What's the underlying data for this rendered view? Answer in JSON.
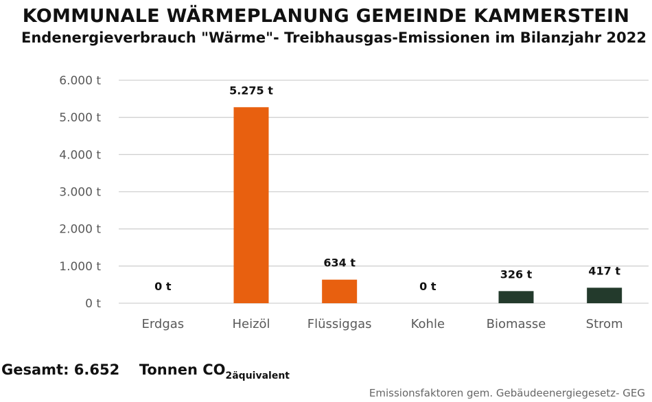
{
  "header": {
    "title": "KOMMUNALE WÄRMEPLANUNG GEMEINDE KAMMERSTEIN",
    "subtitle": "Endenergieverbrauch \"Wärme\"- Treibhausgas-Emissionen im Bilanzjahr 2022"
  },
  "chart_data": {
    "type": "bar",
    "categories": [
      "Erdgas",
      "Heizöl",
      "Flüssiggas",
      "Kohle",
      "Biomasse",
      "Strom"
    ],
    "values": [
      0,
      5275,
      634,
      0,
      326,
      417
    ],
    "data_labels": [
      "0 t",
      "5.275 t",
      "634 t",
      "0 t",
      "326 t",
      "417 t"
    ],
    "bar_colors": [
      "#e8600f",
      "#e8600f",
      "#e8600f",
      "#e8600f",
      "#233a2c",
      "#233a2c"
    ],
    "ylim": [
      0,
      6000
    ],
    "yticks": [
      0,
      1000,
      2000,
      3000,
      4000,
      5000,
      6000
    ],
    "ytick_labels": [
      "0 t",
      "1.000 t",
      "2.000 t",
      "3.000 t",
      "4.000 t",
      "5.000 t",
      "6.000 t"
    ],
    "grid": true,
    "legend": "none"
  },
  "summary": {
    "label": "Gesamt:",
    "value": "6.652",
    "unit": "Tonnen CO",
    "unit_sub": "2äquivalent"
  },
  "footnote": "Emissionsfaktoren gem. Gebäudeenergiegesetz- GEG",
  "colors": {
    "orange": "#e8600f",
    "dark_green": "#233a2c",
    "grid": "#d0d0d0"
  }
}
